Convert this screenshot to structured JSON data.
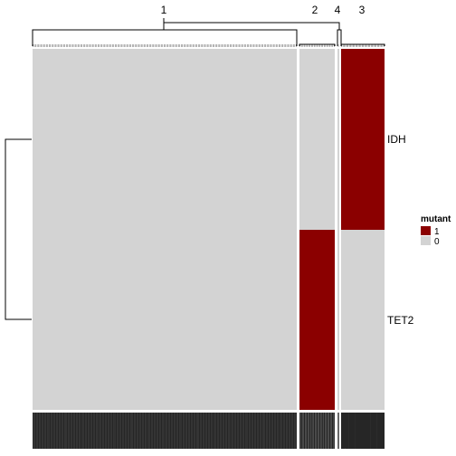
{
  "chart_data": {
    "type": "heatmap",
    "rows": [
      "IDH",
      "TET2"
    ],
    "column_clusters": [
      {
        "label": "1",
        "columns": 200,
        "IDH": 0,
        "TET2": 0
      },
      {
        "label": "2",
        "columns": 25,
        "IDH": 0,
        "TET2": 1
      },
      {
        "label": "4",
        "columns": 1,
        "IDH": 0,
        "TET2": 0
      },
      {
        "label": "3",
        "columns": 34,
        "IDH": 1,
        "TET2": 0
      }
    ],
    "legend": {
      "title": "mutant",
      "entries": [
        {
          "label": "1",
          "color": "#8b0000"
        },
        {
          "label": "0",
          "color": "#d3d3d3"
        }
      ],
      "placement": "right"
    },
    "colors": {
      "mutant": "#8b0000",
      "wildtype": "#d3d3d3",
      "gap": "#ffffff",
      "dendrogram": "#000000"
    }
  }
}
